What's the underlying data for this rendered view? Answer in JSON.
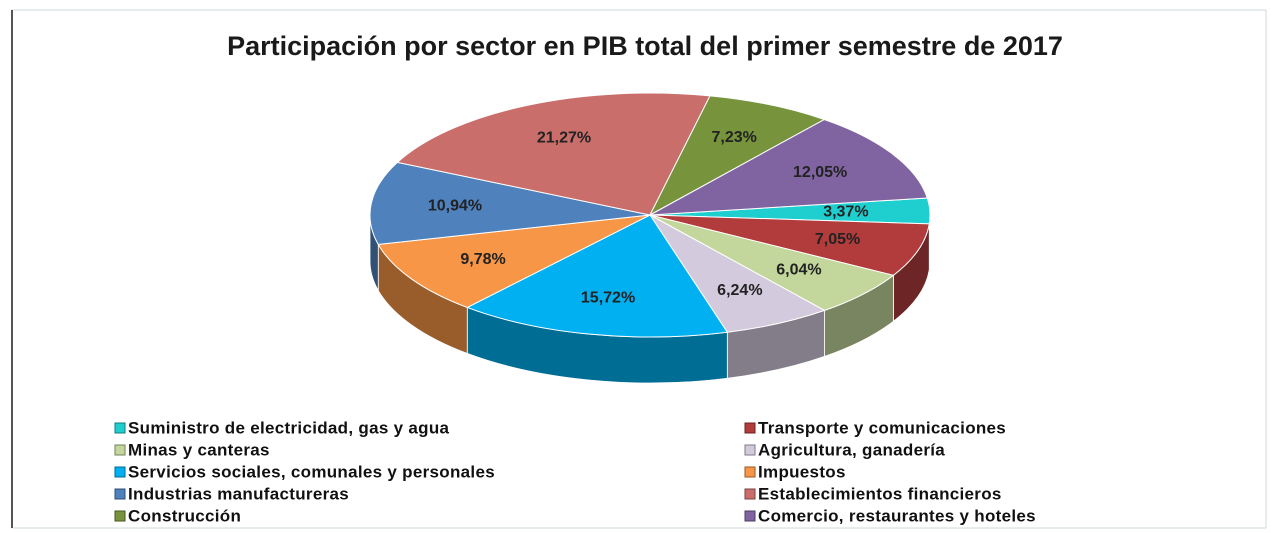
{
  "chart_data": {
    "type": "pie",
    "title": "Participación por sector en PIB total del primer semestre de 2017",
    "categories": [
      "Suministro de electricidad, gas y agua",
      "Transporte y comunicaciones",
      "Minas y canteras",
      "Agricultura, ganadería",
      "Servicios sociales, comunales y personales",
      "Impuestos",
      "Industrias manufactureras",
      "Establecimientos financieros",
      "Construcción",
      "Comercio, restaurantes y hoteles"
    ],
    "values": [
      3.37,
      7.05,
      6.04,
      6.24,
      15.72,
      9.78,
      10.94,
      21.27,
      7.23,
      12.05
    ],
    "value_labels": [
      "3,37%",
      "7,05%",
      "6,04%",
      "6,24%",
      "15,72%",
      "9,78%",
      "10,94%",
      "21,27%",
      "7,23%",
      "12,05%"
    ],
    "colors": [
      "#1fcfcf",
      "#b23b3b",
      "#c3d69b",
      "#d3cade",
      "#00b0f0",
      "#f79646",
      "#4f81bd",
      "#c96e6b",
      "#77933c",
      "#8064a2"
    ],
    "legend": "bottom"
  }
}
